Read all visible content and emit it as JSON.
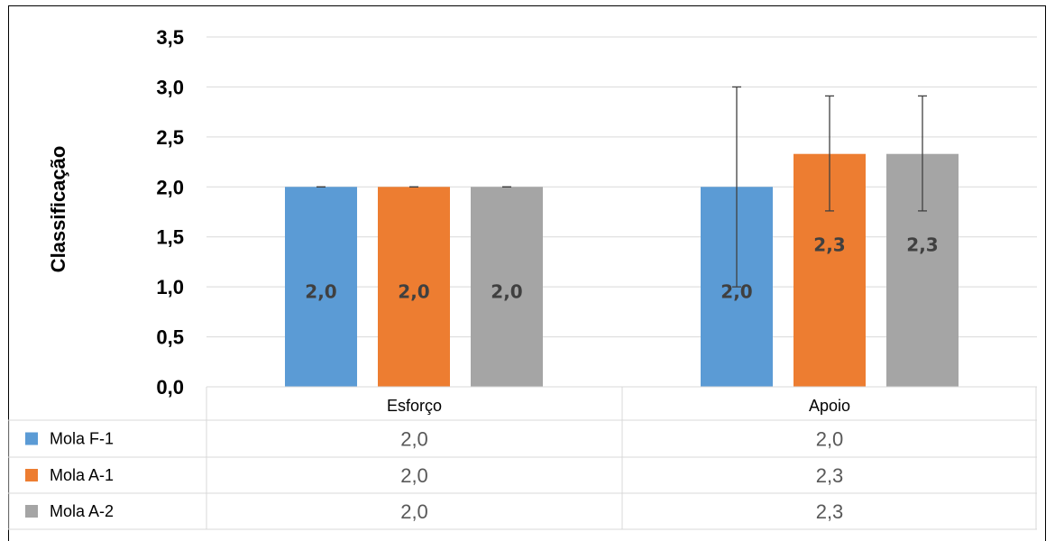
{
  "chart_data": {
    "type": "bar",
    "ylabel": "Classificação",
    "ylim": [
      0,
      3.5
    ],
    "yticks": [
      "0,0",
      "0,5",
      "1,0",
      "1,5",
      "2,0",
      "2,5",
      "3,0",
      "3,5"
    ],
    "grid": true,
    "legend": "data-table-below",
    "categories": [
      "Esforço",
      "Apoio"
    ],
    "series": [
      {
        "name": "Mola F-1",
        "color": "#5B9BD5",
        "values": [
          2.0,
          2.0
        ],
        "labels": [
          "2,0",
          "2,0"
        ],
        "error": [
          [
            2.0,
            2.0
          ],
          [
            1.0,
            3.0
          ]
        ]
      },
      {
        "name": "Mola A-1",
        "color": "#ED7D31",
        "values": [
          2.0,
          2.33
        ],
        "labels": [
          "2,0",
          "2,3"
        ],
        "error": [
          [
            2.0,
            2.0
          ],
          [
            1.76,
            2.91
          ]
        ]
      },
      {
        "name": "Mola A-2",
        "color": "#A5A5A5",
        "values": [
          2.0,
          2.33
        ],
        "labels": [
          "2,0",
          "2,3"
        ],
        "error": [
          [
            2.0,
            2.0
          ],
          [
            1.76,
            2.91
          ]
        ]
      }
    ]
  }
}
